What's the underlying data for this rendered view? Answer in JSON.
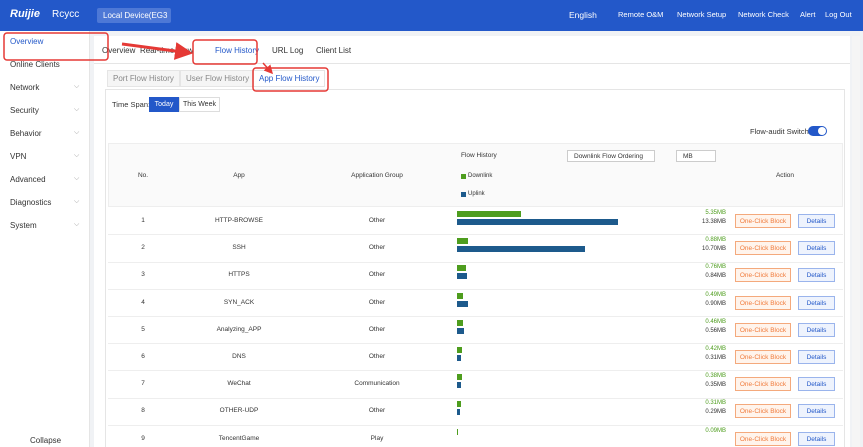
{
  "header": {
    "brand": "Ruijie",
    "product": "Rcycc",
    "device": "Local Device(EG3",
    "nav": [
      "English",
      "Remote O&M",
      "Network Setup",
      "Network Check",
      "Alert",
      "Log Out"
    ]
  },
  "sidebar": {
    "items": [
      "Overview",
      "Online Clients",
      "Network",
      "Security",
      "Behavior",
      "VPN",
      "Advanced",
      "Diagnostics",
      "System"
    ],
    "collapse": "Collapse"
  },
  "tabs": [
    "Overview",
    "Real-time Flow",
    "Flow History",
    "URL Log",
    "Client List"
  ],
  "subtabs": [
    "Port Flow History",
    "User Flow History",
    "App Flow History"
  ],
  "filter": {
    "label": "Time Span:",
    "options": [
      "Today",
      "This Week"
    ],
    "switch": "Flow-audit Switch:"
  },
  "table": {
    "columns": [
      "No.",
      "App",
      "Application Group",
      "Flow History",
      "Action"
    ],
    "ordering": "Downlink Flow Ordering",
    "unit": "MB",
    "legend": [
      "Downlink",
      "Uplink"
    ],
    "actions": [
      "One-Click Block",
      "Details"
    ],
    "rows": [
      {
        "no": 1,
        "app": "HTTP-BROWSE",
        "group": "Other",
        "downlink": {
          "value": 5.35,
          "label": "5.35MB"
        },
        "uplink": {
          "value": 13.38,
          "label": "13.38MB"
        }
      },
      {
        "no": 2,
        "app": "SSH",
        "group": "Other",
        "downlink": {
          "value": 0.88,
          "label": "0.88MB"
        },
        "uplink": {
          "value": 10.7,
          "label": "10.70MB"
        }
      },
      {
        "no": 3,
        "app": "HTTPS",
        "group": "Other",
        "downlink": {
          "value": 0.76,
          "label": "0.76MB"
        },
        "uplink": {
          "value": 0.84,
          "label": "0.84MB"
        }
      },
      {
        "no": 4,
        "app": "SYN_ACK",
        "group": "Other",
        "downlink": {
          "value": 0.49,
          "label": "0.49MB"
        },
        "uplink": {
          "value": 0.9,
          "label": "0.90MB"
        }
      },
      {
        "no": 5,
        "app": "Analyzing_APP",
        "group": "Other",
        "downlink": {
          "value": 0.46,
          "label": "0.46MB"
        },
        "uplink": {
          "value": 0.56,
          "label": "0.56MB"
        }
      },
      {
        "no": 6,
        "app": "DNS",
        "group": "Other",
        "downlink": {
          "value": 0.42,
          "label": "0.42MB"
        },
        "uplink": {
          "value": 0.31,
          "label": "0.31MB"
        }
      },
      {
        "no": 7,
        "app": "WeChat",
        "group": "Communication",
        "downlink": {
          "value": 0.38,
          "label": "0.38MB"
        },
        "uplink": {
          "value": 0.35,
          "label": "0.35MB"
        }
      },
      {
        "no": 8,
        "app": "OTHER-UDP",
        "group": "Other",
        "downlink": {
          "value": 0.31,
          "label": "0.31MB"
        },
        "uplink": {
          "value": 0.29,
          "label": "0.29MB"
        }
      },
      {
        "no": 9,
        "app": "TencentGame",
        "group": "Play",
        "downlink": {
          "value": 0.09,
          "label": "0.09MB"
        },
        "uplink": null
      }
    ]
  }
}
